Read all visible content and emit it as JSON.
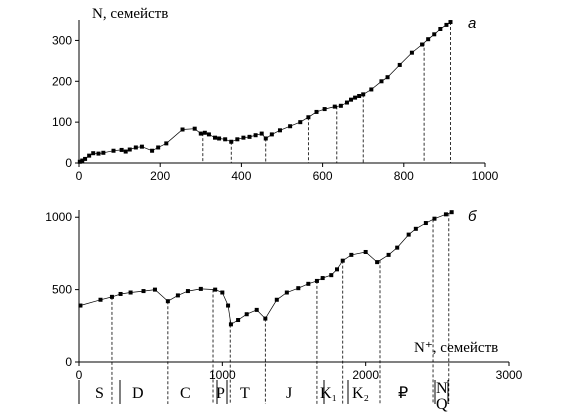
{
  "chart_data": [
    {
      "type": "line",
      "panel_label": "а",
      "ylabel": "N, семейств",
      "xlim": [
        0,
        1000
      ],
      "ylim": [
        0,
        350
      ],
      "xticks": [
        0,
        200,
        400,
        600,
        800,
        1000
      ],
      "yticks": [
        0,
        100,
        200,
        300
      ],
      "grid": false,
      "x": [
        2,
        8,
        15,
        25,
        35,
        48,
        60,
        85,
        105,
        115,
        125,
        140,
        155,
        180,
        195,
        215,
        255,
        285,
        300,
        310,
        320,
        335,
        345,
        360,
        375,
        390,
        405,
        420,
        435,
        450,
        460,
        475,
        495,
        520,
        545,
        565,
        585,
        605,
        630,
        645,
        660,
        670,
        680,
        690,
        700,
        720,
        745,
        760,
        790,
        820,
        845,
        860,
        875,
        890,
        905,
        915
      ],
      "y": [
        3,
        6,
        10,
        18,
        24,
        23,
        25,
        30,
        32,
        28,
        33,
        38,
        40,
        30,
        38,
        48,
        82,
        84,
        72,
        74,
        70,
        62,
        60,
        58,
        52,
        58,
        62,
        64,
        68,
        72,
        60,
        70,
        80,
        90,
        100,
        112,
        125,
        132,
        138,
        140,
        148,
        155,
        160,
        164,
        168,
        180,
        200,
        210,
        240,
        270,
        290,
        303,
        315,
        328,
        338,
        345
      ],
      "reference_x": [
        305,
        375,
        460,
        565,
        635,
        700,
        850,
        915
      ]
    },
    {
      "type": "line",
      "panel_label": "б",
      "xlabel": "N⁺, семейств",
      "xlim": [
        0,
        3000
      ],
      "ylim": [
        0,
        1050
      ],
      "xticks": [
        0,
        1000,
        2000,
        3000
      ],
      "yticks": [
        0,
        500,
        1000
      ],
      "grid": false,
      "x": [
        10,
        150,
        230,
        290,
        360,
        450,
        530,
        620,
        690,
        760,
        850,
        950,
        1000,
        1040,
        1060,
        1110,
        1170,
        1240,
        1300,
        1380,
        1450,
        1530,
        1600,
        1660,
        1700,
        1760,
        1800,
        1840,
        1900,
        2000,
        2080,
        2160,
        2220,
        2300,
        2350,
        2420,
        2480,
        2560,
        2600
      ],
      "y": [
        390,
        430,
        450,
        470,
        480,
        490,
        500,
        420,
        460,
        490,
        505,
        500,
        480,
        390,
        260,
        290,
        330,
        360,
        300,
        430,
        480,
        510,
        540,
        560,
        580,
        600,
        640,
        700,
        740,
        760,
        690,
        740,
        790,
        880,
        920,
        960,
        990,
        1020,
        1035
      ],
      "reference_x": [
        230,
        620,
        935,
        1055,
        1300,
        1660,
        1840,
        2100,
        2470,
        2580
      ]
    }
  ],
  "periods": [
    "S",
    "D",
    "C",
    "P",
    "T",
    "J",
    "K₁",
    "K₂",
    "₽",
    "N",
    "Q"
  ]
}
